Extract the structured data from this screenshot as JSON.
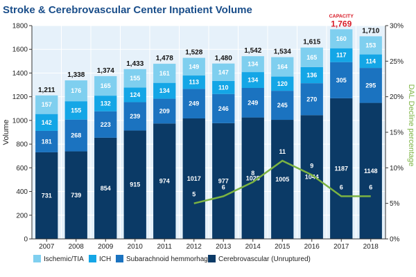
{
  "colors": {
    "title": "#1a4e8a",
    "cerebrovascular": "#0b3a66",
    "subarachnoid": "#1b73c0",
    "ich": "#14a6e6",
    "ischemic": "#7fcfef",
    "plot_bg": "#e6f1fa",
    "grid": "#ffffff",
    "line": "#7cb342",
    "capacity": "#d81e2a"
  },
  "chart_data": {
    "type": "bar",
    "stacked": true,
    "title": "Stroke & Cerebrovascular Center Inpatient Volume",
    "ylabel": "Volume",
    "y2label": "DAL Decline percentage",
    "ylim": [
      0,
      1800
    ],
    "yticks": [
      "0",
      "200",
      "400",
      "600",
      "800",
      "1000",
      "1200",
      "1400",
      "1600",
      "1800"
    ],
    "y2lim": [
      0,
      30
    ],
    "y2ticks": [
      "0%",
      "5%",
      "10%",
      "15%",
      "20%",
      "25%",
      "30%"
    ],
    "categories": [
      "2007",
      "2008",
      "2009",
      "2010",
      "2011",
      "2012",
      "2013",
      "2014",
      "2015",
      "2016",
      "2017",
      "2018"
    ],
    "series": [
      {
        "name": "Cerebrovascular (Unruptured)",
        "values": [
          731,
          739,
          854,
          915,
          974,
          1017,
          977,
          1025,
          1005,
          1044,
          1187,
          1148
        ]
      },
      {
        "name": "Subarachnoid hemmorhage",
        "values": [
          181,
          268,
          223,
          239,
          209,
          249,
          246,
          249,
          245,
          270,
          305,
          295
        ]
      },
      {
        "name": "ICH",
        "values": [
          142,
          155,
          132,
          124,
          134,
          113,
          110,
          134,
          120,
          136,
          117,
          114
        ]
      },
      {
        "name": "Ischemic/TIA",
        "values": [
          157,
          176,
          165,
          155,
          161,
          149,
          147,
          134,
          164,
          165,
          160,
          153
        ]
      }
    ],
    "totals": [
      "1,211",
      "1,338",
      "1,374",
      "1,433",
      "1,478",
      "1,528",
      "1,480",
      "1,542",
      "1,534",
      "1,615",
      "1,769",
      "1,710"
    ],
    "line_series": {
      "name": "DAL Decline percentage",
      "categories": [
        "2012",
        "2013",
        "2014",
        "2015",
        "2016",
        "2017",
        "2018"
      ],
      "values": [
        5,
        6,
        8,
        11,
        9,
        6,
        6
      ],
      "labels": [
        "5",
        "6",
        "8",
        "11",
        "9",
        "6",
        "6"
      ]
    },
    "annotation": {
      "label": "CAPACITY",
      "category": "2017"
    },
    "legend": [
      "Ischemic/TIA",
      "ICH",
      "Subarachnoid hemmorhage",
      "Cerebrovascular (Unruptured)"
    ],
    "legend_position": "bottom"
  }
}
